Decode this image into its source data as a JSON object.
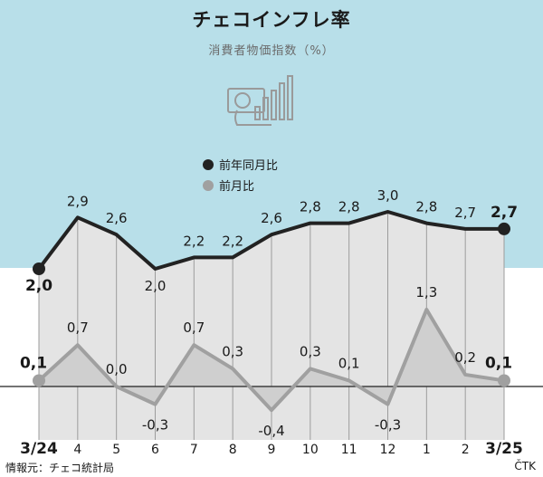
{
  "title": "チェコインフレ率",
  "subtitle": "消費者物価指数（%）",
  "icon": "cpi-chart-icon",
  "source": "情報元：チェコ統計局",
  "credit": "ČTK",
  "colors": {
    "background_top": "#b8dfe9",
    "plot_fill": "#e4e4e4",
    "yoy_line": "#222222",
    "mom_line": "#a0a0a0",
    "mom_area": "#cfcfcf",
    "icon_stroke": "#9a9a9a"
  },
  "legend": [
    {
      "label": "前年同月比",
      "color": "#222222"
    },
    {
      "label": "前月比",
      "color": "#a0a0a0"
    }
  ],
  "chart_data": {
    "type": "line",
    "categories": [
      "3/24",
      "4",
      "5",
      "6",
      "7",
      "8",
      "9",
      "10",
      "11",
      "12",
      "1",
      "2",
      "3/25"
    ],
    "series": [
      {
        "name": "前年同月比",
        "values": [
          2.0,
          2.9,
          2.6,
          2.0,
          2.2,
          2.2,
          2.6,
          2.8,
          2.8,
          3.0,
          2.8,
          2.7,
          2.7
        ],
        "labels": [
          "2,0",
          "2,9",
          "2,6",
          "2,0",
          "2,2",
          "2,2",
          "2,6",
          "2,8",
          "2,8",
          "3,0",
          "2,8",
          "2,7",
          "2,7"
        ]
      },
      {
        "name": "前月比",
        "values": [
          0.1,
          0.7,
          0.0,
          -0.3,
          0.7,
          0.3,
          -0.4,
          0.3,
          0.1,
          -0.3,
          1.3,
          0.2,
          0.1
        ],
        "labels": [
          "0,1",
          "0,7",
          "0,0",
          "-0,3",
          "0,7",
          "0,3",
          "-0,4",
          "0,3",
          "0,1",
          "-0,3",
          "1,3",
          "0,2",
          "0,1"
        ]
      }
    ],
    "legend_position": "top-center",
    "grid": "vertical"
  }
}
